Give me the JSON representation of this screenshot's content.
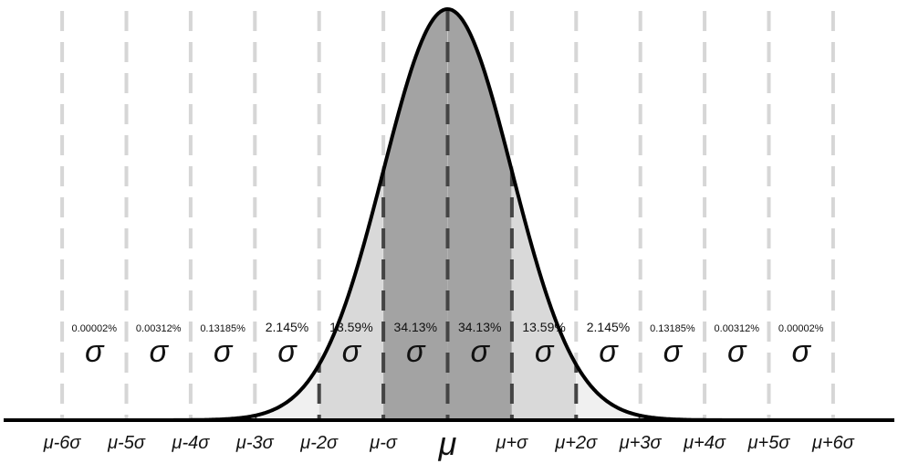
{
  "diagram": {
    "type": "normal-distribution",
    "sigma_symbol": "σ",
    "x_labels": [
      "μ-6σ",
      "μ-5σ",
      "μ-4σ",
      "μ-3σ",
      "μ-2σ",
      "μ-σ",
      "μ",
      "μ+σ",
      "μ+2σ",
      "μ+3σ",
      "μ+4σ",
      "μ+5σ",
      "μ+6σ"
    ],
    "bands": [
      {
        "from": -6,
        "to": -5,
        "percent": "0.00002%"
      },
      {
        "from": -5,
        "to": -4,
        "percent": "0.00312%"
      },
      {
        "from": -4,
        "to": -3,
        "percent": "0.13185%"
      },
      {
        "from": -3,
        "to": -2,
        "percent": "2.145%"
      },
      {
        "from": -2,
        "to": -1,
        "percent": "13.59%"
      },
      {
        "from": -1,
        "to": 0,
        "percent": "34.13%"
      },
      {
        "from": 0,
        "to": 1,
        "percent": "34.13%"
      },
      {
        "from": 1,
        "to": 2,
        "percent": "13.59%"
      },
      {
        "from": 2,
        "to": 3,
        "percent": "2.145%"
      },
      {
        "from": 3,
        "to": 4,
        "percent": "0.13185%"
      },
      {
        "from": 4,
        "to": 5,
        "percent": "0.00312%"
      },
      {
        "from": 5,
        "to": 6,
        "percent": "0.00002%"
      }
    ],
    "colors": {
      "within_1_sigma": "#a3a3a3",
      "within_2_sigma": "#d9d9d9",
      "within_3_sigma": "#f0f0f0",
      "grid_light": "#d6d6d6",
      "grid_dark": "#444444",
      "curve": "#000000"
    }
  }
}
